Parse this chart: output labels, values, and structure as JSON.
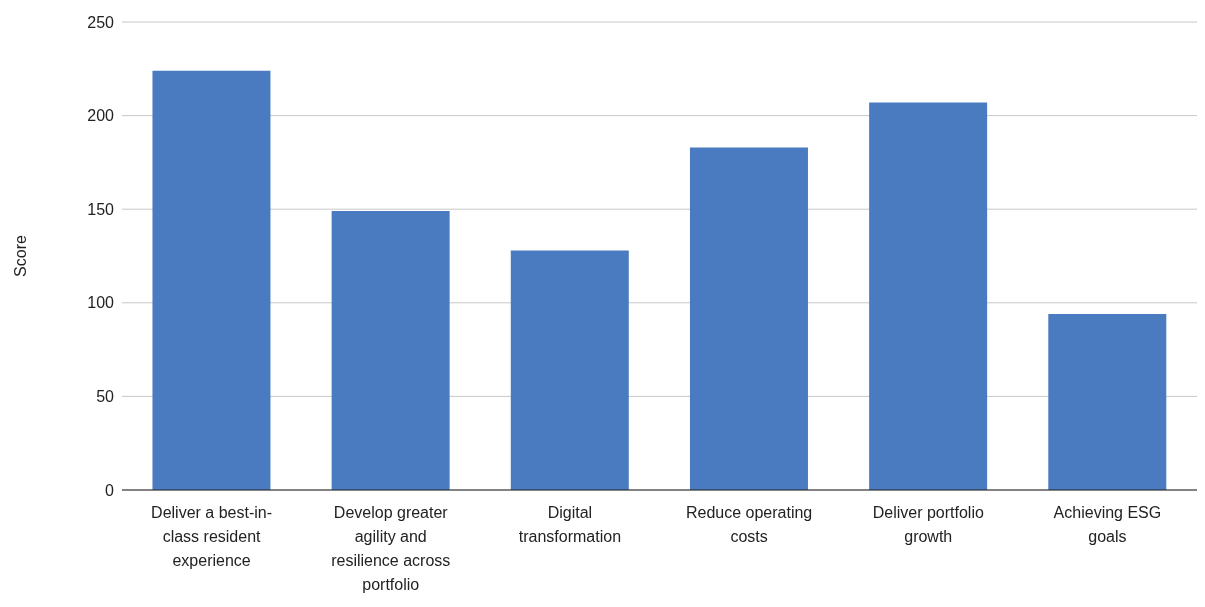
{
  "chart_data": {
    "type": "bar",
    "ylabel": "Score",
    "categories": [
      "Deliver a best-in-class resident experience",
      "Develop greater agility and resilience across portfolio",
      "Digital transformation",
      "Reduce operating costs",
      "Deliver portfolio growth",
      "Achieving ESG goals"
    ],
    "values": [
      224,
      149,
      128,
      183,
      207,
      94
    ],
    "color": "#4a7bc0",
    "ylim": [
      0,
      250
    ],
    "yticks": [
      0,
      50,
      100,
      150,
      200,
      250
    ],
    "grid": "y"
  }
}
